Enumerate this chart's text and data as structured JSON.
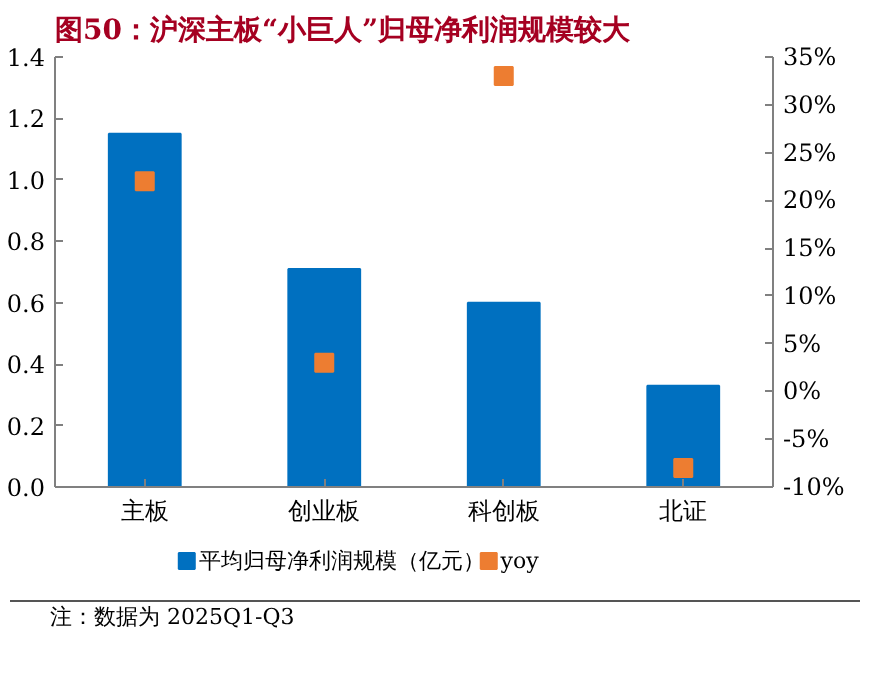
{
  "chart_data": {
    "type": "bar",
    "title": "图50：沪深主板“小巨人”归母净利润规模较大",
    "categories": [
      "主板",
      "创业板",
      "科创板",
      "北证"
    ],
    "series": [
      {
        "name": "平均归母净利润规模（亿元）",
        "color": "#0070c0",
        "values": [
          1.15,
          0.71,
          0.6,
          0.33
        ]
      },
      {
        "name": "yoy",
        "type": "scatter",
        "axis": "y2",
        "marker": "square",
        "color": "#ed7d31",
        "values": [
          22,
          3,
          33,
          -8
        ]
      }
    ],
    "ylim": [
      0,
      1.4
    ],
    "yticks": [
      {
        "value": 0,
        "label": "0.0"
      },
      0.2,
      0.4,
      0.6,
      0.8,
      {
        "value": 1,
        "label": "1.0"
      },
      1.2,
      1.4
    ],
    "y2lim": [
      -10,
      35
    ],
    "y2ticks": [
      {
        "value": -10,
        "label": "-10%"
      },
      {
        "value": -5,
        "label": "-5%"
      },
      {
        "value": 0,
        "label": "0%"
      },
      {
        "value": 5,
        "label": "5%"
      },
      {
        "value": 10,
        "label": "10%"
      },
      {
        "value": 15,
        "label": "15%"
      },
      {
        "value": 20,
        "label": "20%"
      },
      {
        "value": 25,
        "label": "25%"
      },
      {
        "value": 30,
        "label": "30%"
      },
      {
        "value": 35,
        "label": "35%"
      }
    ],
    "grid": false,
    "legend": "bottom",
    "annotations": [
      "注：数据为 2025Q1-Q3"
    ]
  }
}
